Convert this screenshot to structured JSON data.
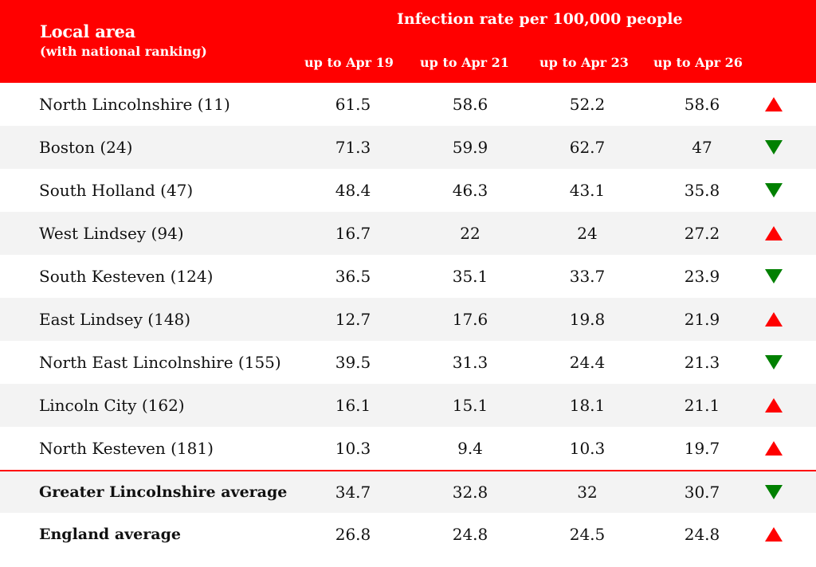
{
  "header": {
    "area_title": "Local area",
    "area_subtitle": "(with national ranking)",
    "group_title": "Infection rate per 100,000 people",
    "columns": [
      "up to Apr 19",
      "up to Apr 21",
      "up to Apr 23",
      "up to Apr 26"
    ]
  },
  "colors": {
    "header_bg": "#ff0000",
    "up_arrow": "#ff0000",
    "down_arrow": "#008000",
    "alt_row": "#f3f3f3"
  },
  "chart_data": {
    "type": "table",
    "title": "Infection rate per 100,000 people",
    "columns": [
      "Local area",
      "up to Apr 19",
      "up to Apr 21",
      "up to Apr 23",
      "up to Apr 26"
    ],
    "rows": [
      {
        "area": "North Lincolnshire (11)",
        "values": [
          "61.5",
          "58.6",
          "52.2",
          "58.6"
        ],
        "trend": "up"
      },
      {
        "area": "Boston (24)",
        "values": [
          "71.3",
          "59.9",
          "62.7",
          "47"
        ],
        "trend": "down"
      },
      {
        "area": "South Holland (47)",
        "values": [
          "48.4",
          "46.3",
          "43.1",
          "35.8"
        ],
        "trend": "down"
      },
      {
        "area": "West Lindsey (94)",
        "values": [
          "16.7",
          "22",
          "24",
          "27.2"
        ],
        "trend": "up"
      },
      {
        "area": "South Kesteven (124)",
        "values": [
          "36.5",
          "35.1",
          "33.7",
          "23.9"
        ],
        "trend": "down"
      },
      {
        "area": "East Lindsey (148)",
        "values": [
          "12.7",
          "17.6",
          "19.8",
          "21.9"
        ],
        "trend": "up"
      },
      {
        "area": "North East Lincolnshire (155)",
        "values": [
          "39.5",
          "31.3",
          "24.4",
          "21.3"
        ],
        "trend": "down"
      },
      {
        "area": "Lincoln City (162)",
        "values": [
          "16.1",
          "15.1",
          "18.1",
          "21.1"
        ],
        "trend": "up"
      },
      {
        "area": "North Kesteven (181)",
        "values": [
          "10.3",
          "9.4",
          "10.3",
          "19.7"
        ],
        "trend": "up"
      }
    ],
    "summary_rows": [
      {
        "area": "Greater Lincolnshire average",
        "values": [
          "34.7",
          "32.8",
          "32",
          "30.7"
        ],
        "trend": "down"
      },
      {
        "area": "England average",
        "values": [
          "26.8",
          "24.8",
          "24.5",
          "24.8"
        ],
        "trend": "up"
      }
    ]
  }
}
